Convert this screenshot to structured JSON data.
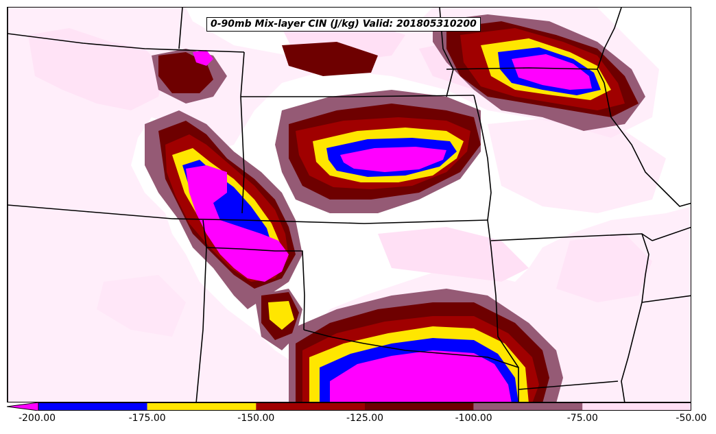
{
  "title": "0-90mb Mix-layer CIN (J/kg) Valid: 201805310200",
  "colorbar": {
    "bins": [
      {
        "from": -200,
        "to": -175,
        "color": "#0000ff"
      },
      {
        "from": -175,
        "to": -150,
        "color": "#ffe600"
      },
      {
        "from": -150,
        "to": -125,
        "color": "#a00000"
      },
      {
        "from": -125,
        "to": -100,
        "color": "#6e0000"
      },
      {
        "from": -100,
        "to": -75,
        "color": "#955a75"
      },
      {
        "from": -75,
        "to": -50,
        "color": "#ffe0f5"
      }
    ],
    "below_min_color": "#ff00ff",
    "tick_labels": [
      "-200.00",
      "-175.00",
      "-150.00",
      "-125.00",
      "-100.00",
      "-75.00",
      "-50.00"
    ]
  },
  "colors": {
    "boundary": "#000000",
    "background": "#ffffff",
    "extreme": "#ff00ff",
    "very_strong": "#0000ff",
    "strong": "#ffe600",
    "moderate": "#a00000",
    "moderate_dark": "#6e0000",
    "weak": "#955a75",
    "very_weak": "#ffe0f5"
  }
}
